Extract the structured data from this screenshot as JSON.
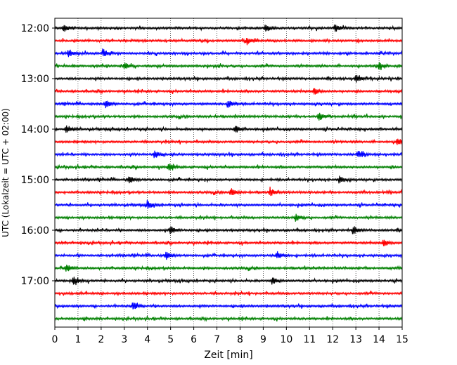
{
  "chart_data": {
    "type": "line",
    "title": "",
    "xlabel": "Zeit  [min]",
    "ylabel": "UTC (Lokalzeit = UTC + 02:00)",
    "xlim": [
      0,
      15
    ],
    "x_ticks": [
      0,
      1,
      2,
      3,
      4,
      5,
      6,
      7,
      8,
      9,
      10,
      11,
      12,
      13,
      14,
      15
    ],
    "x_tick_labels": [
      "0",
      "1",
      "2",
      "3",
      "4",
      "5",
      "6",
      "7",
      "8",
      "9",
      "10",
      "11",
      "12",
      "13",
      "14",
      "15"
    ],
    "y_tick_labels": [
      "12:00",
      "13:00",
      "14:00",
      "15:00",
      "16:00",
      "17:00"
    ],
    "y_tick_rows": [
      0,
      4,
      8,
      12,
      16,
      20
    ],
    "grid": "vertical dotted at each minute",
    "trace_colors": [
      "#000000",
      "#ff0000",
      "#0000ff",
      "#008000"
    ],
    "traces_per_hour": 4,
    "minutes_per_trace": 15,
    "series": [
      {
        "start": "12:00",
        "color": "#000000",
        "events_min": [
          0.4,
          9.1,
          12.1
        ]
      },
      {
        "start": "12:15",
        "color": "#ff0000",
        "events_min": [
          8.3
        ]
      },
      {
        "start": "12:30",
        "color": "#0000ff",
        "events_min": [
          0.6,
          2.1
        ]
      },
      {
        "start": "12:45",
        "color": "#008000",
        "events_min": [
          3.0,
          14.0
        ]
      },
      {
        "start": "13:00",
        "color": "#000000",
        "events_min": [
          13.0
        ]
      },
      {
        "start": "13:15",
        "color": "#ff0000",
        "events_min": [
          11.2
        ]
      },
      {
        "start": "13:30",
        "color": "#0000ff",
        "events_min": [
          2.2,
          7.5
        ]
      },
      {
        "start": "13:45",
        "color": "#008000",
        "events_min": [
          11.4
        ]
      },
      {
        "start": "14:00",
        "color": "#000000",
        "events_min": [
          0.5,
          7.8
        ]
      },
      {
        "start": "14:15",
        "color": "#ff0000",
        "events_min": [
          14.8
        ]
      },
      {
        "start": "14:30",
        "color": "#0000ff",
        "events_min": [
          4.3,
          13.1
        ]
      },
      {
        "start": "14:45",
        "color": "#008000",
        "events_min": [
          4.9
        ]
      },
      {
        "start": "15:00",
        "color": "#000000",
        "events_min": [
          3.2,
          12.3
        ]
      },
      {
        "start": "15:15",
        "color": "#ff0000",
        "events_min": [
          7.6,
          9.3
        ]
      },
      {
        "start": "15:30",
        "color": "#0000ff",
        "events_min": [
          4.0
        ]
      },
      {
        "start": "15:45",
        "color": "#008000",
        "events_min": [
          10.4
        ]
      },
      {
        "start": "16:00",
        "color": "#000000",
        "events_min": [
          5.0,
          12.9
        ]
      },
      {
        "start": "16:15",
        "color": "#ff0000",
        "events_min": [
          14.2
        ]
      },
      {
        "start": "16:30",
        "color": "#0000ff",
        "events_min": [
          4.8,
          9.6
        ]
      },
      {
        "start": "16:45",
        "color": "#008000",
        "events_min": [
          0.5
        ]
      },
      {
        "start": "17:00",
        "color": "#000000",
        "events_min": [
          0.8,
          9.4
        ]
      },
      {
        "start": "17:15",
        "color": "#ff0000",
        "events_min": []
      },
      {
        "start": "17:30",
        "color": "#0000ff",
        "events_min": [
          3.4
        ]
      },
      {
        "start": "17:45",
        "color": "#008000",
        "events_min": []
      }
    ]
  }
}
